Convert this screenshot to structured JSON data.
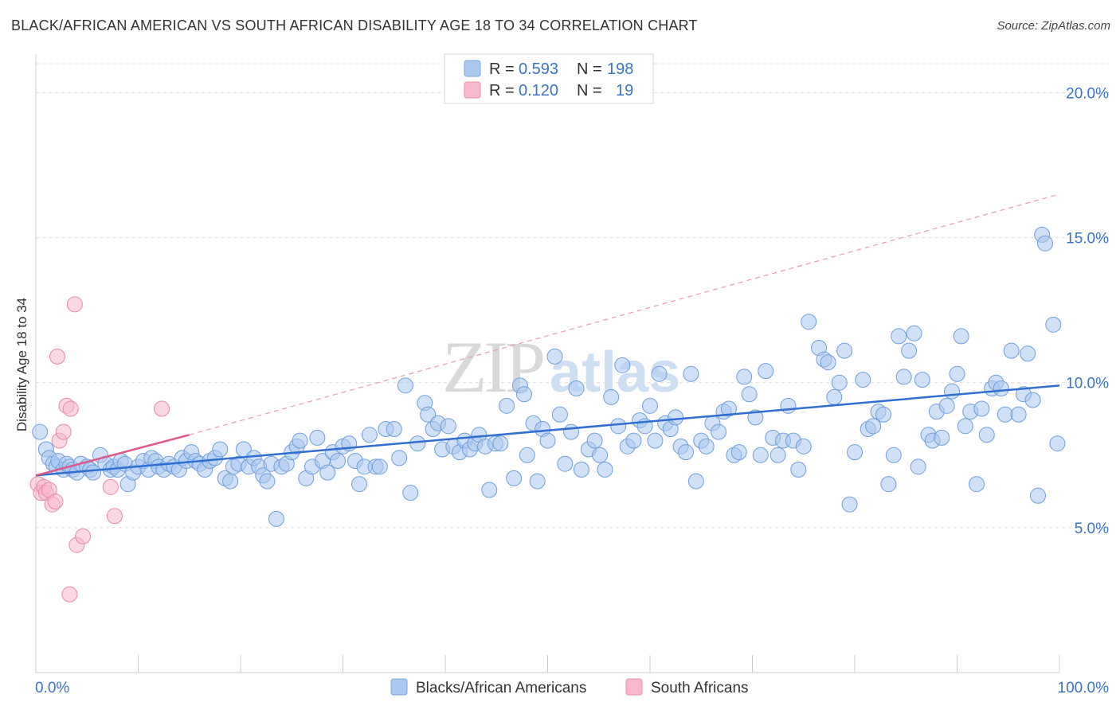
{
  "title": "BLACK/AFRICAN AMERICAN VS SOUTH AFRICAN DISABILITY AGE 18 TO 34 CORRELATION CHART",
  "source": "Source: ZipAtlas.com",
  "watermark": "ZIPatlas",
  "legend_top": [
    {
      "r_label": "R =",
      "r_value": "0.593",
      "n_label": "N =",
      "n_value": "198",
      "color": "#aac8f0"
    },
    {
      "r_label": "R =",
      "r_value": "0.120",
      "n_label": "N =",
      "n_value": "19",
      "color": "#f7b8cb"
    }
  ],
  "chart_data": {
    "type": "scatter",
    "ylabel": "Disability Age 18 to 34",
    "xlabel": "",
    "xlim": [
      0,
      100
    ],
    "ylim": [
      0,
      21
    ],
    "x_tick_labels": [
      "0.0%",
      "100.0%"
    ],
    "y_ticks": [
      5,
      10,
      15,
      20
    ],
    "y_tick_labels": [
      "5.0%",
      "10.0%",
      "15.0%",
      "20.0%"
    ],
    "grid": true,
    "legend_position": "bottom",
    "series": [
      {
        "name": "Blacks/African Americans",
        "color": "#aac8f0",
        "trend": {
          "x": [
            0,
            100
          ],
          "y": [
            6.8,
            9.9
          ],
          "color": "#2f6fd0"
        },
        "points": [
          [
            0.4,
            8.3
          ],
          [
            1.0,
            7.7
          ],
          [
            1.3,
            7.4
          ],
          [
            1.7,
            7.2
          ],
          [
            2.0,
            7.1
          ],
          [
            2.2,
            7.3
          ],
          [
            2.7,
            7.0
          ],
          [
            3.0,
            7.2
          ],
          [
            3.3,
            7.1
          ],
          [
            3.6,
            7.0
          ],
          [
            4.0,
            6.9
          ],
          [
            4.4,
            7.2
          ],
          [
            5.0,
            7.1
          ],
          [
            5.3,
            7.0
          ],
          [
            5.6,
            6.9
          ],
          [
            6.3,
            7.5
          ],
          [
            6.8,
            7.2
          ],
          [
            7.3,
            7.0
          ],
          [
            7.6,
            7.1
          ],
          [
            8.0,
            7.0
          ],
          [
            8.3,
            7.3
          ],
          [
            8.7,
            7.2
          ],
          [
            9.0,
            6.5
          ],
          [
            9.5,
            6.9
          ],
          [
            10.0,
            7.1
          ],
          [
            10.5,
            7.3
          ],
          [
            11.0,
            7.0
          ],
          [
            11.3,
            7.4
          ],
          [
            11.7,
            7.3
          ],
          [
            12.0,
            7.1
          ],
          [
            12.5,
            7.0
          ],
          [
            13.0,
            7.2
          ],
          [
            13.5,
            7.1
          ],
          [
            14.0,
            7.0
          ],
          [
            14.3,
            7.4
          ],
          [
            14.7,
            7.3
          ],
          [
            15.2,
            7.6
          ],
          [
            15.6,
            7.3
          ],
          [
            16.0,
            7.2
          ],
          [
            16.5,
            7.0
          ],
          [
            17.0,
            7.3
          ],
          [
            17.5,
            7.4
          ],
          [
            18.0,
            7.7
          ],
          [
            18.5,
            6.7
          ],
          [
            19.0,
            6.6
          ],
          [
            19.3,
            7.1
          ],
          [
            19.8,
            7.2
          ],
          [
            20.3,
            7.7
          ],
          [
            20.8,
            7.1
          ],
          [
            21.3,
            7.4
          ],
          [
            21.8,
            7.1
          ],
          [
            22.2,
            6.8
          ],
          [
            22.6,
            6.6
          ],
          [
            23.0,
            7.2
          ],
          [
            23.5,
            5.3
          ],
          [
            24.0,
            7.1
          ],
          [
            24.5,
            7.2
          ],
          [
            25.0,
            7.6
          ],
          [
            25.5,
            7.8
          ],
          [
            25.8,
            8.0
          ],
          [
            26.4,
            6.7
          ],
          [
            27.0,
            7.1
          ],
          [
            27.5,
            8.1
          ],
          [
            28.0,
            7.3
          ],
          [
            28.5,
            6.9
          ],
          [
            29.0,
            7.6
          ],
          [
            29.5,
            7.3
          ],
          [
            30.0,
            7.8
          ],
          [
            30.6,
            7.9
          ],
          [
            31.2,
            7.3
          ],
          [
            31.6,
            6.5
          ],
          [
            32.1,
            7.1
          ],
          [
            32.6,
            8.2
          ],
          [
            33.2,
            7.1
          ],
          [
            33.6,
            7.1
          ],
          [
            34.2,
            8.4
          ],
          [
            35.0,
            8.4
          ],
          [
            35.5,
            7.4
          ],
          [
            36.1,
            9.9
          ],
          [
            36.6,
            6.2
          ],
          [
            37.3,
            7.9
          ],
          [
            38.0,
            9.3
          ],
          [
            38.3,
            8.9
          ],
          [
            38.8,
            8.4
          ],
          [
            39.3,
            8.6
          ],
          [
            39.7,
            7.7
          ],
          [
            40.3,
            8.5
          ],
          [
            40.8,
            7.8
          ],
          [
            41.4,
            7.6
          ],
          [
            41.9,
            8.0
          ],
          [
            42.4,
            7.7
          ],
          [
            42.9,
            7.9
          ],
          [
            43.3,
            8.2
          ],
          [
            43.9,
            7.8
          ],
          [
            44.3,
            6.3
          ],
          [
            44.9,
            7.9
          ],
          [
            45.4,
            7.9
          ],
          [
            46.0,
            9.2
          ],
          [
            46.7,
            6.7
          ],
          [
            47.3,
            9.9
          ],
          [
            47.7,
            9.6
          ],
          [
            48.0,
            7.5
          ],
          [
            48.6,
            8.6
          ],
          [
            49.0,
            6.6
          ],
          [
            49.5,
            8.4
          ],
          [
            50.0,
            8.0
          ],
          [
            50.7,
            10.9
          ],
          [
            51.2,
            8.9
          ],
          [
            51.7,
            7.2
          ],
          [
            52.3,
            8.3
          ],
          [
            52.8,
            9.8
          ],
          [
            53.3,
            7.0
          ],
          [
            54.0,
            7.7
          ],
          [
            54.6,
            8.0
          ],
          [
            55.1,
            7.5
          ],
          [
            55.6,
            7.0
          ],
          [
            56.2,
            9.5
          ],
          [
            56.9,
            8.5
          ],
          [
            57.3,
            10.6
          ],
          [
            57.8,
            7.8
          ],
          [
            58.4,
            8.0
          ],
          [
            59.0,
            8.7
          ],
          [
            59.5,
            8.5
          ],
          [
            60.0,
            9.2
          ],
          [
            60.5,
            8.0
          ],
          [
            60.9,
            10.3
          ],
          [
            61.5,
            8.6
          ],
          [
            62.0,
            8.4
          ],
          [
            62.5,
            8.8
          ],
          [
            63.0,
            7.8
          ],
          [
            63.5,
            7.6
          ],
          [
            64.0,
            10.3
          ],
          [
            64.5,
            6.6
          ],
          [
            65.0,
            8.0
          ],
          [
            65.5,
            7.8
          ],
          [
            66.1,
            8.6
          ],
          [
            66.7,
            8.3
          ],
          [
            67.2,
            9.0
          ],
          [
            67.7,
            9.1
          ],
          [
            68.2,
            7.5
          ],
          [
            68.7,
            7.6
          ],
          [
            69.2,
            10.2
          ],
          [
            69.7,
            9.6
          ],
          [
            70.3,
            8.8
          ],
          [
            70.8,
            7.5
          ],
          [
            71.3,
            10.4
          ],
          [
            72.0,
            8.1
          ],
          [
            72.5,
            7.5
          ],
          [
            73.0,
            8.0
          ],
          [
            73.5,
            9.2
          ],
          [
            74.0,
            8.0
          ],
          [
            74.5,
            7.0
          ],
          [
            75.0,
            7.8
          ],
          [
            75.5,
            12.1
          ],
          [
            76.5,
            11.2
          ],
          [
            77.0,
            10.8
          ],
          [
            77.4,
            10.7
          ],
          [
            78.0,
            9.5
          ],
          [
            78.5,
            10.0
          ],
          [
            79.0,
            11.1
          ],
          [
            79.5,
            5.8
          ],
          [
            80.0,
            7.6
          ],
          [
            80.8,
            10.1
          ],
          [
            81.3,
            8.4
          ],
          [
            81.8,
            8.5
          ],
          [
            82.3,
            9.0
          ],
          [
            82.8,
            8.9
          ],
          [
            83.3,
            6.5
          ],
          [
            83.8,
            7.5
          ],
          [
            84.3,
            11.6
          ],
          [
            84.8,
            10.2
          ],
          [
            85.3,
            11.1
          ],
          [
            85.8,
            11.7
          ],
          [
            86.2,
            7.1
          ],
          [
            86.6,
            10.1
          ],
          [
            87.2,
            8.2
          ],
          [
            87.6,
            8.0
          ],
          [
            88.0,
            9.0
          ],
          [
            88.5,
            8.1
          ],
          [
            89.0,
            9.2
          ],
          [
            89.5,
            9.7
          ],
          [
            90.0,
            10.3
          ],
          [
            90.4,
            11.6
          ],
          [
            90.8,
            8.5
          ],
          [
            91.3,
            9.0
          ],
          [
            91.9,
            6.5
          ],
          [
            92.4,
            9.1
          ],
          [
            92.9,
            8.2
          ],
          [
            93.4,
            9.8
          ],
          [
            93.8,
            10.0
          ],
          [
            94.3,
            9.8
          ],
          [
            94.7,
            8.9
          ],
          [
            95.3,
            11.1
          ],
          [
            96.0,
            8.9
          ],
          [
            96.5,
            9.6
          ],
          [
            96.9,
            11.0
          ],
          [
            97.4,
            9.4
          ],
          [
            97.9,
            6.1
          ],
          [
            98.3,
            15.1
          ],
          [
            98.6,
            14.8
          ],
          [
            99.4,
            12.0
          ],
          [
            99.8,
            7.9
          ]
        ]
      },
      {
        "name": "South Africans",
        "color": "#f7b8cb",
        "trend": {
          "x": [
            0,
            15
          ],
          "y": [
            6.8,
            8.2
          ],
          "color": "#e0588a"
        },
        "trend_extended": {
          "x": [
            15,
            100
          ],
          "y": [
            8.2,
            16.5
          ]
        },
        "points": [
          [
            0.2,
            6.5
          ],
          [
            0.5,
            6.2
          ],
          [
            0.8,
            6.4
          ],
          [
            1.0,
            6.2
          ],
          [
            1.3,
            6.3
          ],
          [
            1.6,
            5.8
          ],
          [
            1.9,
            5.9
          ],
          [
            2.1,
            10.9
          ],
          [
            2.3,
            8.0
          ],
          [
            2.7,
            8.3
          ],
          [
            3.0,
            9.2
          ],
          [
            3.4,
            9.1
          ],
          [
            3.8,
            12.7
          ],
          [
            4.0,
            4.4
          ],
          [
            4.6,
            4.7
          ],
          [
            3.3,
            2.7
          ],
          [
            7.3,
            6.4
          ],
          [
            7.7,
            5.4
          ],
          [
            12.3,
            9.1
          ]
        ]
      }
    ]
  }
}
